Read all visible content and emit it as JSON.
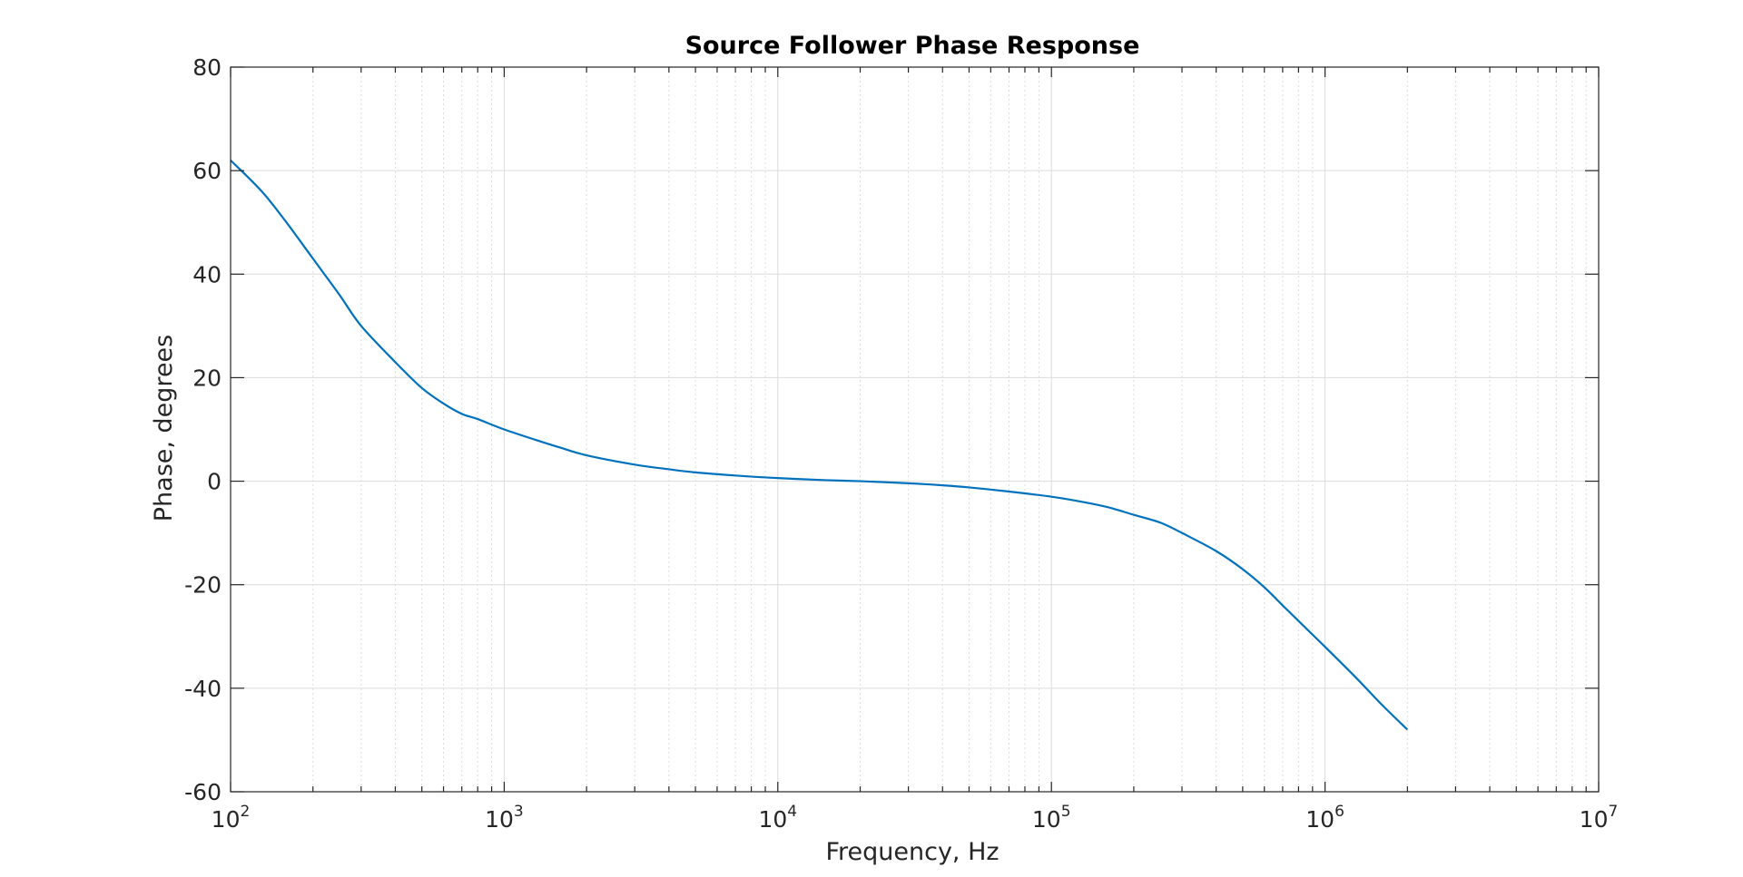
{
  "chart_data": {
    "type": "line",
    "title": "Source Follower Phase Response",
    "xlabel": "Frequency, Hz",
    "ylabel": "Phase, degrees",
    "xscale": "log",
    "xlim": [
      100,
      10000000
    ],
    "ylim": [
      -60,
      80
    ],
    "grid": true,
    "minor_grid": true,
    "legend": "none",
    "x_tick_labels": [
      {
        "value": 100,
        "base": "10",
        "exp": "2"
      },
      {
        "value": 1000,
        "base": "10",
        "exp": "3"
      },
      {
        "value": 10000,
        "base": "10",
        "exp": "4"
      },
      {
        "value": 100000,
        "base": "10",
        "exp": "5"
      },
      {
        "value": 1000000,
        "base": "10",
        "exp": "6"
      },
      {
        "value": 10000000,
        "base": "10",
        "exp": "7"
      }
    ],
    "y_tick_labels": [
      {
        "value": 80,
        "label": "80"
      },
      {
        "value": 60,
        "label": "60"
      },
      {
        "value": 40,
        "label": "40"
      },
      {
        "value": 20,
        "label": "20"
      },
      {
        "value": 0,
        "label": "0"
      },
      {
        "value": -20,
        "label": "-20"
      },
      {
        "value": -40,
        "label": "-40"
      },
      {
        "value": -60,
        "label": "-60"
      }
    ],
    "series": [
      {
        "color": "#0072bd",
        "x": [
          100,
          130,
          160,
          200,
          250,
          300,
          400,
          500,
          600,
          700,
          800,
          1000,
          1300,
          1600,
          2000,
          3000,
          4000,
          5000,
          7000,
          10000,
          15000,
          20000,
          30000,
          40000,
          50000,
          70000,
          100000,
          130000,
          160000,
          200000,
          250000,
          300000,
          400000,
          500000,
          600000,
          700000,
          800000,
          1000000,
          1300000,
          1600000,
          2000000
        ],
        "y": [
          62,
          56,
          50,
          43,
          36,
          30,
          23,
          18,
          15,
          13,
          12,
          10,
          8,
          6.5,
          5,
          3.2,
          2.3,
          1.7,
          1.1,
          0.6,
          0.2,
          0,
          -0.4,
          -0.8,
          -1.2,
          -2,
          -3,
          -4,
          -5,
          -6.5,
          -8,
          -10,
          -13.5,
          -17,
          -20.5,
          -24,
          -27,
          -32,
          -38,
          -43,
          -48
        ]
      }
    ]
  }
}
